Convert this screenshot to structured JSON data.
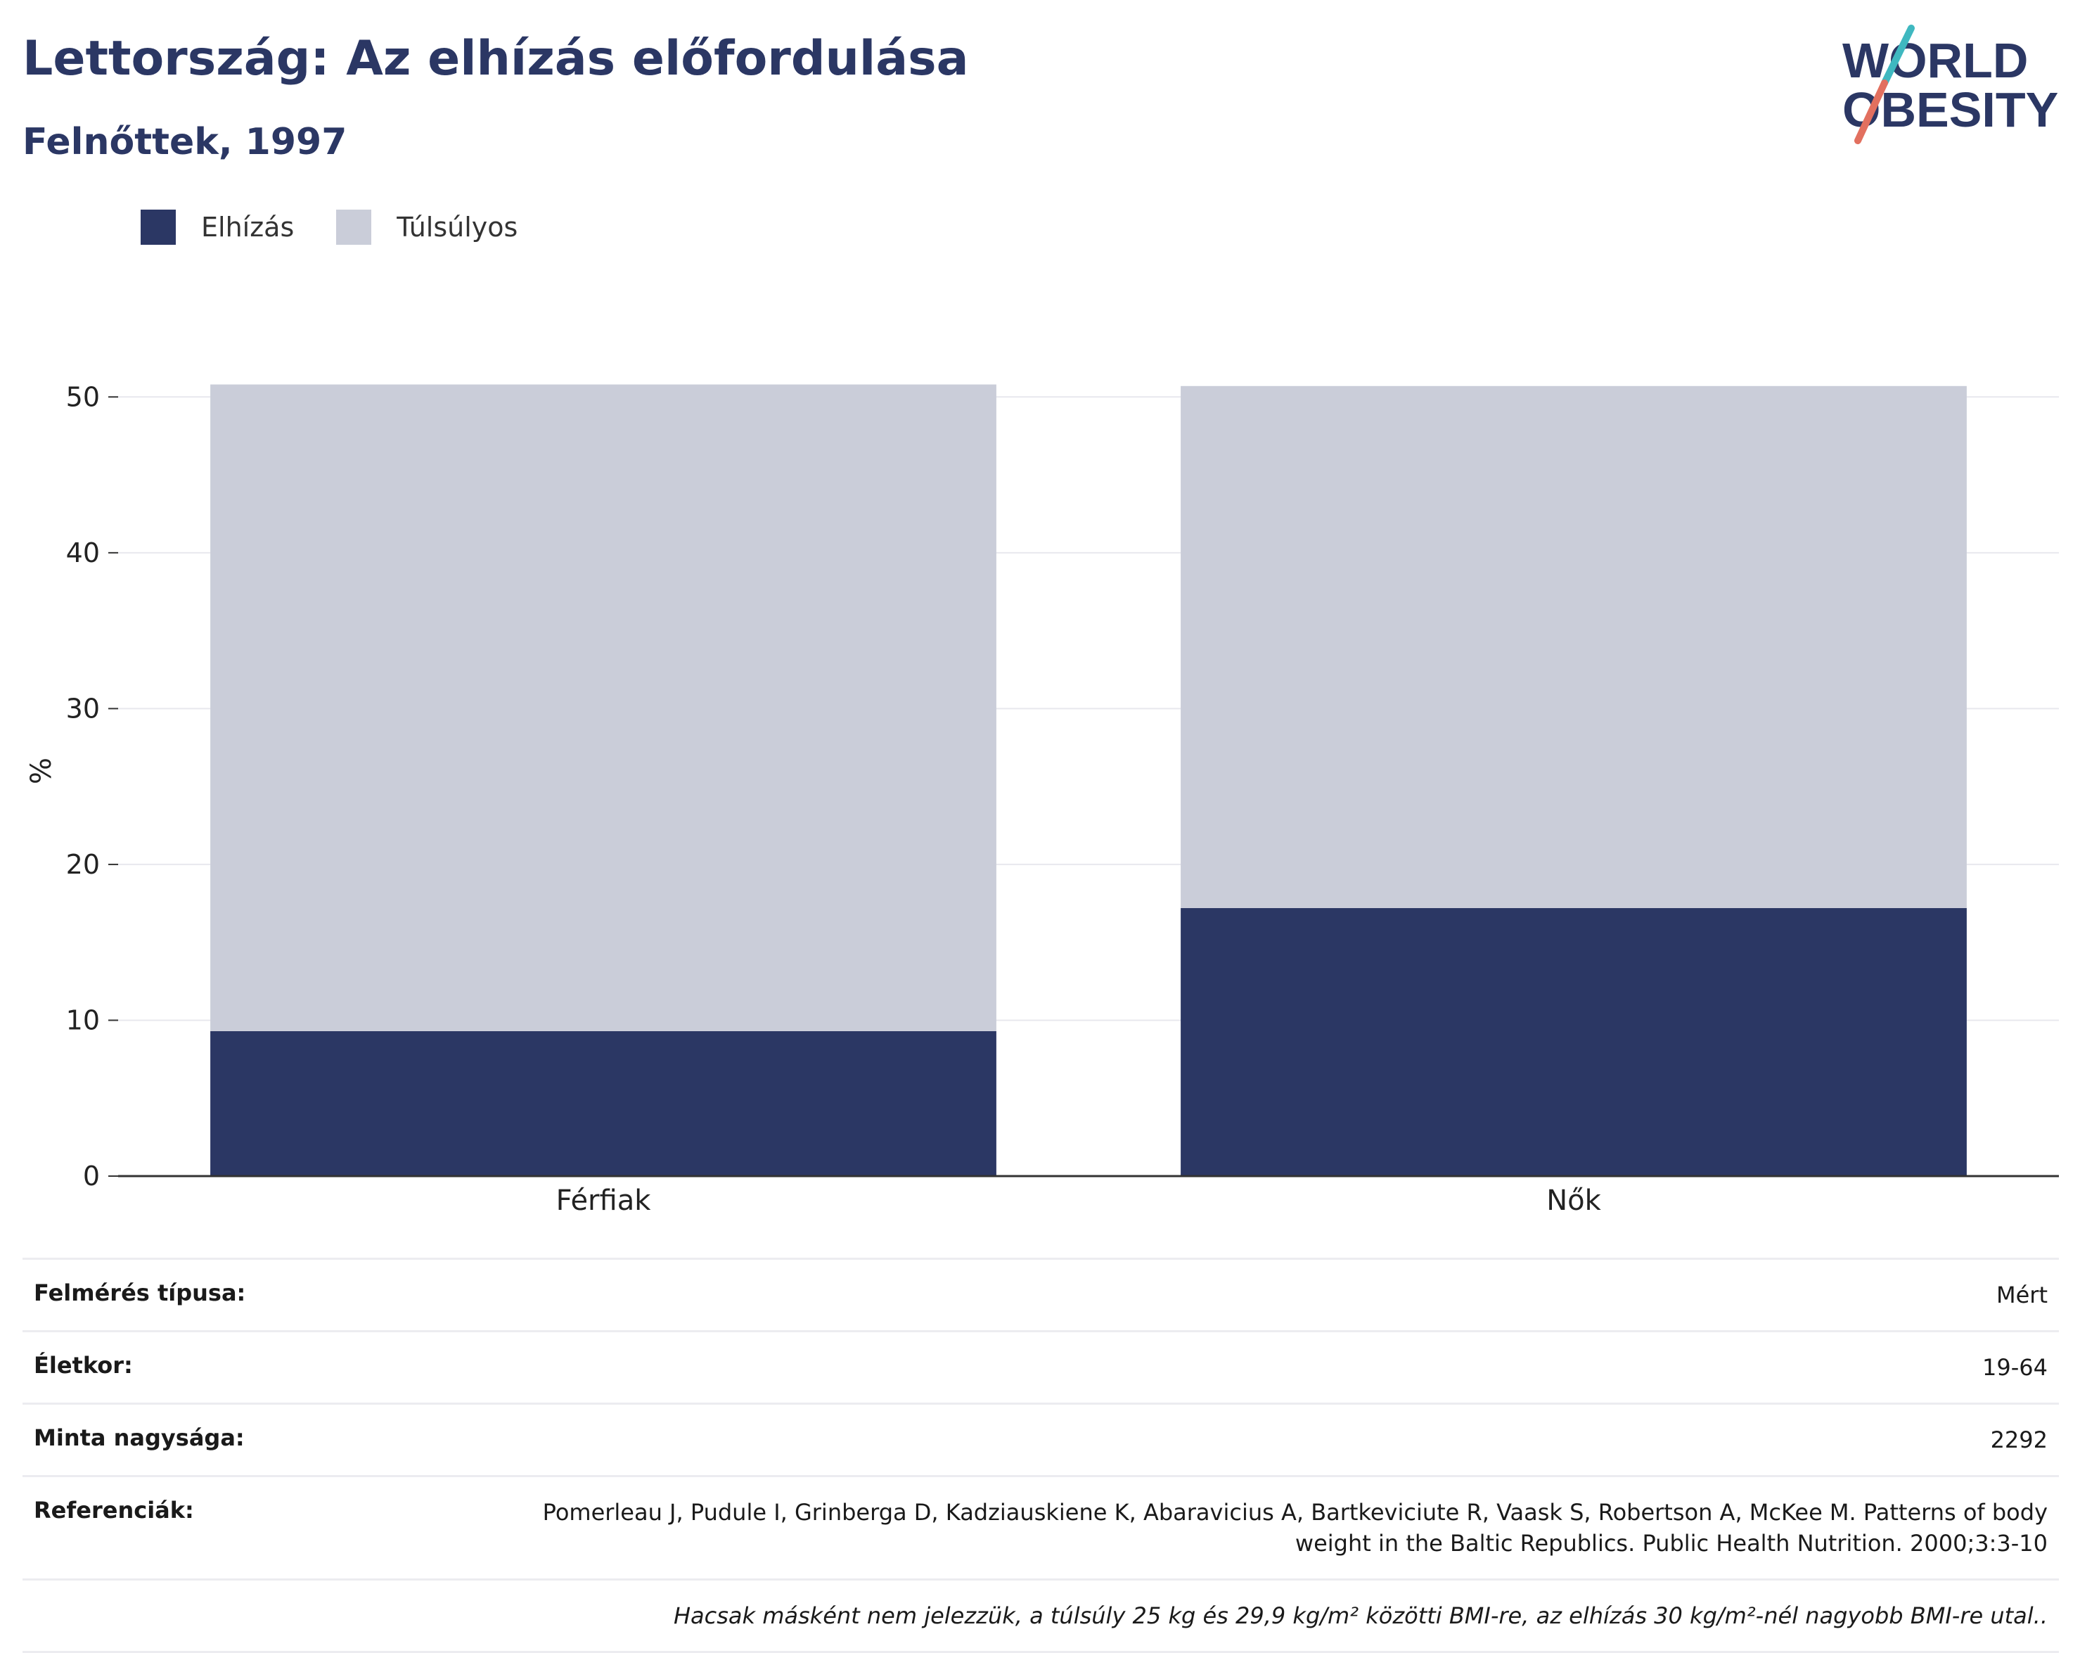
{
  "header": {
    "title": "Lettország: Az elhízás előfordulása",
    "subtitle": "Felnőttek, 1997"
  },
  "logo": {
    "line1": "WORLD",
    "line2": "OBESITY",
    "colors": {
      "text": "#2b3764",
      "slash_top": "#3fb8c0",
      "slash_bottom": "#e2705f"
    }
  },
  "legend": {
    "items": [
      {
        "label": "Elhízás",
        "color": "#2b3764"
      },
      {
        "label": "Túlsúlyos",
        "color": "#cacdd9"
      }
    ]
  },
  "chart_data": {
    "type": "bar",
    "stacked": true,
    "categories": [
      "Férfiak",
      "Nők"
    ],
    "series": [
      {
        "name": "Elhízás",
        "color": "#2b3764",
        "values": [
          9.3,
          17.2
        ]
      },
      {
        "name": "Túlsúlyos",
        "color": "#cacdd9",
        "values": [
          41.5,
          33.5
        ]
      }
    ],
    "xlabel": "",
    "ylabel": "%",
    "ylim": [
      0,
      52
    ],
    "yticks": [
      0,
      10,
      20,
      30,
      40,
      50
    ],
    "grid": true,
    "legend_position": "top-left"
  },
  "meta": {
    "rows": [
      {
        "key": "Felmérés típusa:",
        "value": "Mért"
      },
      {
        "key": "Életkor:",
        "value": "19-64"
      },
      {
        "key": "Minta nagysága:",
        "value": "2292"
      },
      {
        "key": "Referenciák:",
        "value": "Pomerleau J, Pudule I, Grinberga D, Kadziauskiene K, Abaravicius A, Bartkeviciute R, Vaask S, Robertson A, McKee M. Patterns of body weight in the Baltic Republics. Public Health Nutrition. 2000;3:3-10"
      }
    ],
    "note": "Hacsak másként nem jelezzük, a túlsúly 25 kg és 29,9 kg/m² közötti BMI-re, az elhízás 30 kg/m²-nél nagyobb BMI-re utal.."
  }
}
